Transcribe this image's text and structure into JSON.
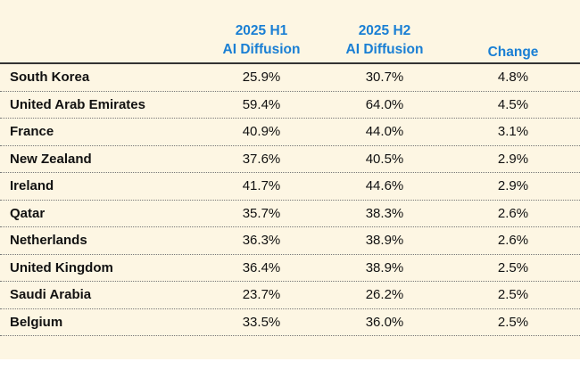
{
  "table": {
    "columns": [
      {
        "line1": "2025 H1",
        "line2": "AI Diffusion"
      },
      {
        "line1": "2025 H2",
        "line2": "AI Diffusion"
      },
      {
        "line1": "Change"
      }
    ],
    "rows": [
      {
        "country": "South Korea",
        "h1": "25.9%",
        "h2": "30.7%",
        "change": "4.8%"
      },
      {
        "country": "United Arab Emirates",
        "h1": "59.4%",
        "h2": "64.0%",
        "change": "4.5%"
      },
      {
        "country": "France",
        "h1": "40.9%",
        "h2": "44.0%",
        "change": "3.1%"
      },
      {
        "country": "New Zealand",
        "h1": "37.6%",
        "h2": "40.5%",
        "change": "2.9%"
      },
      {
        "country": "Ireland",
        "h1": "41.7%",
        "h2": "44.6%",
        "change": "2.9%"
      },
      {
        "country": "Qatar",
        "h1": "35.7%",
        "h2": "38.3%",
        "change": "2.6%"
      },
      {
        "country": "Netherlands",
        "h1": "36.3%",
        "h2": "38.9%",
        "change": "2.6%"
      },
      {
        "country": "United Kingdom",
        "h1": "36.4%",
        "h2": "38.9%",
        "change": "2.5%"
      },
      {
        "country": "Saudi Arabia",
        "h1": "23.7%",
        "h2": "26.2%",
        "change": "2.5%"
      },
      {
        "country": "Belgium",
        "h1": "33.5%",
        "h2": "36.0%",
        "change": "2.5%"
      }
    ]
  },
  "colors": {
    "background": "#fdf6e3",
    "header_text": "#1a7fd4",
    "body_text": "#111111"
  }
}
